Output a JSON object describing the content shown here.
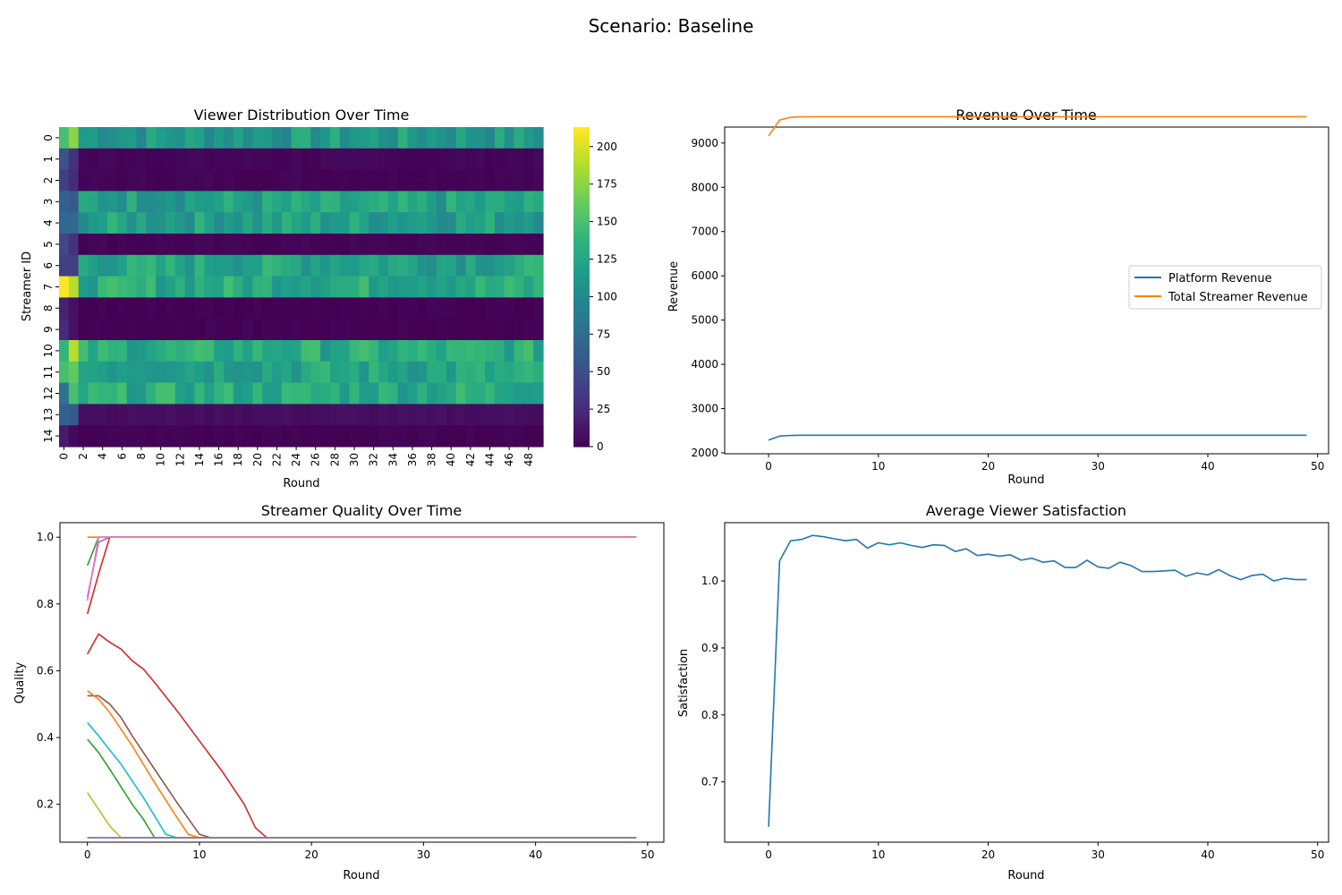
{
  "figure": {
    "title": "Scenario: Baseline"
  },
  "chart_data": [
    {
      "type": "heatmap",
      "title": "Viewer Distribution Over Time",
      "xlabel": "Round",
      "ylabel": "Streamer ID",
      "x_ticks": [
        "0",
        "2",
        "4",
        "6",
        "8",
        "10",
        "12",
        "14",
        "16",
        "18",
        "20",
        "22",
        "24",
        "26",
        "28",
        "30",
        "32",
        "34",
        "36",
        "38",
        "40",
        "42",
        "44",
        "46",
        "48"
      ],
      "y_ticks": [
        "0",
        "1",
        "2",
        "3",
        "4",
        "5",
        "6",
        "7",
        "8",
        "9",
        "10",
        "11",
        "12",
        "13",
        "14"
      ],
      "colorbar": {
        "colormap": "viridis",
        "min": 0,
        "max": 213,
        "ticks": [
          0,
          25,
          50,
          75,
          100,
          125,
          150,
          175,
          200
        ]
      },
      "rounds": 50,
      "streamers": 15,
      "row_profiles": [
        {
          "id": 0,
          "r0": 150,
          "r1": 175,
          "steady": 115
        },
        {
          "id": 1,
          "r0": 55,
          "r1": 30,
          "steady": 3
        },
        {
          "id": 2,
          "r0": 40,
          "r1": 25,
          "steady": 2
        },
        {
          "id": 3,
          "r0": 65,
          "r1": 60,
          "steady": 120
        },
        {
          "id": 4,
          "r0": 70,
          "r1": 70,
          "steady": 120
        },
        {
          "id": 5,
          "r0": 45,
          "r1": 30,
          "steady": 2
        },
        {
          "id": 6,
          "r0": 40,
          "r1": 40,
          "steady": 125
        },
        {
          "id": 7,
          "r0": 213,
          "r1": 190,
          "steady": 130
        },
        {
          "id": 8,
          "r0": 20,
          "r1": 10,
          "steady": 1
        },
        {
          "id": 9,
          "r0": 25,
          "r1": 10,
          "steady": 1
        },
        {
          "id": 10,
          "r0": 140,
          "r1": 190,
          "steady": 130
        },
        {
          "id": 11,
          "r0": 150,
          "r1": 160,
          "steady": 125
        },
        {
          "id": 12,
          "r0": 80,
          "r1": 150,
          "steady": 130
        },
        {
          "id": 13,
          "r0": 65,
          "r1": 60,
          "steady": 8
        },
        {
          "id": 14,
          "r0": 15,
          "r1": 5,
          "steady": 1
        }
      ]
    },
    {
      "type": "line",
      "title": "Revenue Over Time",
      "xlabel": "Round",
      "ylabel": "Revenue",
      "xlim": [
        -4,
        51
      ],
      "ylim": [
        1980,
        9360
      ],
      "x_ticks": [
        0,
        10,
        20,
        30,
        40,
        50
      ],
      "y_ticks": [
        2000,
        3000,
        4000,
        5000,
        6000,
        7000,
        8000,
        9000
      ],
      "legend": "center-right",
      "series": [
        {
          "name": "Platform Revenue",
          "color": "#1f77b4",
          "rounds": 50,
          "start": [
            2290,
            2380,
            2395
          ],
          "steady": 2398
        },
        {
          "name": "Total Streamer Revenue",
          "color": "#ff7f0e",
          "rounds": 50,
          "start": [
            9160,
            9520,
            9580,
            9592
          ],
          "steady": 9595
        }
      ]
    },
    {
      "type": "line",
      "title": "Streamer Quality Over Time",
      "xlabel": "Round",
      "ylabel": "Quality",
      "xlim": [
        -2.45,
        51.45
      ],
      "ylim": [
        0.0865,
        1.0435
      ],
      "x_ticks": [
        0,
        10,
        20,
        30,
        40,
        50
      ],
      "y_ticks": [
        0.2,
        0.4,
        0.6,
        0.8,
        1.0
      ],
      "series": [
        {
          "color": "#1f77b4",
          "points": [
            [
              0,
              0.1
            ],
            [
              49,
              0.1
            ]
          ]
        },
        {
          "color": "#ff7f0e",
          "points": [
            [
              0,
              1.0
            ],
            [
              49,
              1.0
            ]
          ]
        },
        {
          "color": "#2ca02c",
          "points": [
            [
              0,
              0.915
            ],
            [
              1,
              1.0
            ],
            [
              49,
              1.0
            ]
          ]
        },
        {
          "color": "#d62728",
          "points": [
            [
              0,
              0.77
            ],
            [
              1,
              0.89
            ],
            [
              2,
              1.0
            ],
            [
              49,
              1.0
            ]
          ]
        },
        {
          "color": "#9467bd",
          "points": [
            [
              0,
              0.82
            ],
            [
              1,
              0.985
            ],
            [
              2,
              1.0
            ],
            [
              49,
              1.0
            ]
          ]
        },
        {
          "color": "#e377c2",
          "points": [
            [
              0,
              0.81
            ],
            [
              1,
              1.0
            ],
            [
              49,
              1.0
            ]
          ]
        },
        {
          "color": "#d62728",
          "points": [
            [
              0,
              0.65
            ],
            [
              1,
              0.71
            ],
            [
              2,
              0.685
            ],
            [
              3,
              0.665
            ],
            [
              4,
              0.63
            ],
            [
              5,
              0.605
            ],
            [
              6,
              0.565
            ],
            [
              8,
              0.48
            ],
            [
              10,
              0.39
            ],
            [
              12,
              0.3
            ],
            [
              14,
              0.2
            ],
            [
              15,
              0.13
            ],
            [
              16,
              0.1
            ],
            [
              49,
              0.1
            ]
          ]
        },
        {
          "color": "#8c564b",
          "points": [
            [
              0,
              0.525
            ],
            [
              1,
              0.525
            ],
            [
              2,
              0.5
            ],
            [
              3,
              0.46
            ],
            [
              4,
              0.405
            ],
            [
              6,
              0.305
            ],
            [
              8,
              0.205
            ],
            [
              10,
              0.11
            ],
            [
              11,
              0.1
            ],
            [
              49,
              0.1
            ]
          ]
        },
        {
          "color": "#ff7f0e",
          "points": [
            [
              0,
              0.54
            ],
            [
              1,
              0.515
            ],
            [
              2,
              0.475
            ],
            [
              4,
              0.375
            ],
            [
              6,
              0.265
            ],
            [
              8,
              0.16
            ],
            [
              9,
              0.11
            ],
            [
              10,
              0.1
            ],
            [
              49,
              0.1
            ]
          ]
        },
        {
          "color": "#17becf",
          "points": [
            [
              0,
              0.445
            ],
            [
              1,
              0.405
            ],
            [
              3,
              0.32
            ],
            [
              5,
              0.22
            ],
            [
              7,
              0.11
            ],
            [
              8,
              0.1
            ],
            [
              49,
              0.1
            ]
          ]
        },
        {
          "color": "#2ca02c",
          "points": [
            [
              0,
              0.395
            ],
            [
              1,
              0.355
            ],
            [
              2,
              0.305
            ],
            [
              4,
              0.2
            ],
            [
              5,
              0.155
            ],
            [
              6,
              0.1
            ],
            [
              49,
              0.1
            ]
          ]
        },
        {
          "color": "#bcbd22",
          "points": [
            [
              0,
              0.235
            ],
            [
              1,
              0.185
            ],
            [
              2,
              0.135
            ],
            [
              3,
              0.1
            ],
            [
              49,
              0.1
            ]
          ]
        },
        {
          "color": "#9467bd",
          "points": [
            [
              0,
              0.1
            ],
            [
              49,
              0.1
            ]
          ]
        }
      ]
    },
    {
      "type": "line",
      "title": "Average Viewer Satisfaction",
      "xlabel": "Round",
      "ylabel": "Satisfaction",
      "xlim": [
        -4,
        51
      ],
      "ylim": [
        0.61,
        1.087
      ],
      "x_ticks": [
        0,
        10,
        20,
        30,
        40,
        50
      ],
      "y_ticks": [
        0.7,
        0.8,
        0.9,
        1.0
      ],
      "series": [
        {
          "color": "#1f77b4",
          "values": [
            0.633,
            1.03,
            1.06,
            1.062,
            1.068,
            1.066,
            1.063,
            1.06,
            1.062,
            1.049,
            1.057,
            1.054,
            1.057,
            1.053,
            1.05,
            1.054,
            1.053,
            1.044,
            1.048,
            1.038,
            1.04,
            1.037,
            1.039,
            1.031,
            1.034,
            1.028,
            1.03,
            1.02,
            1.02,
            1.031,
            1.021,
            1.019,
            1.028,
            1.023,
            1.014,
            1.014,
            1.015,
            1.016,
            1.007,
            1.012,
            1.009,
            1.017,
            1.008,
            1.002,
            1.008,
            1.01,
            1.0,
            1.004,
            1.002,
            1.002
          ]
        }
      ]
    }
  ]
}
